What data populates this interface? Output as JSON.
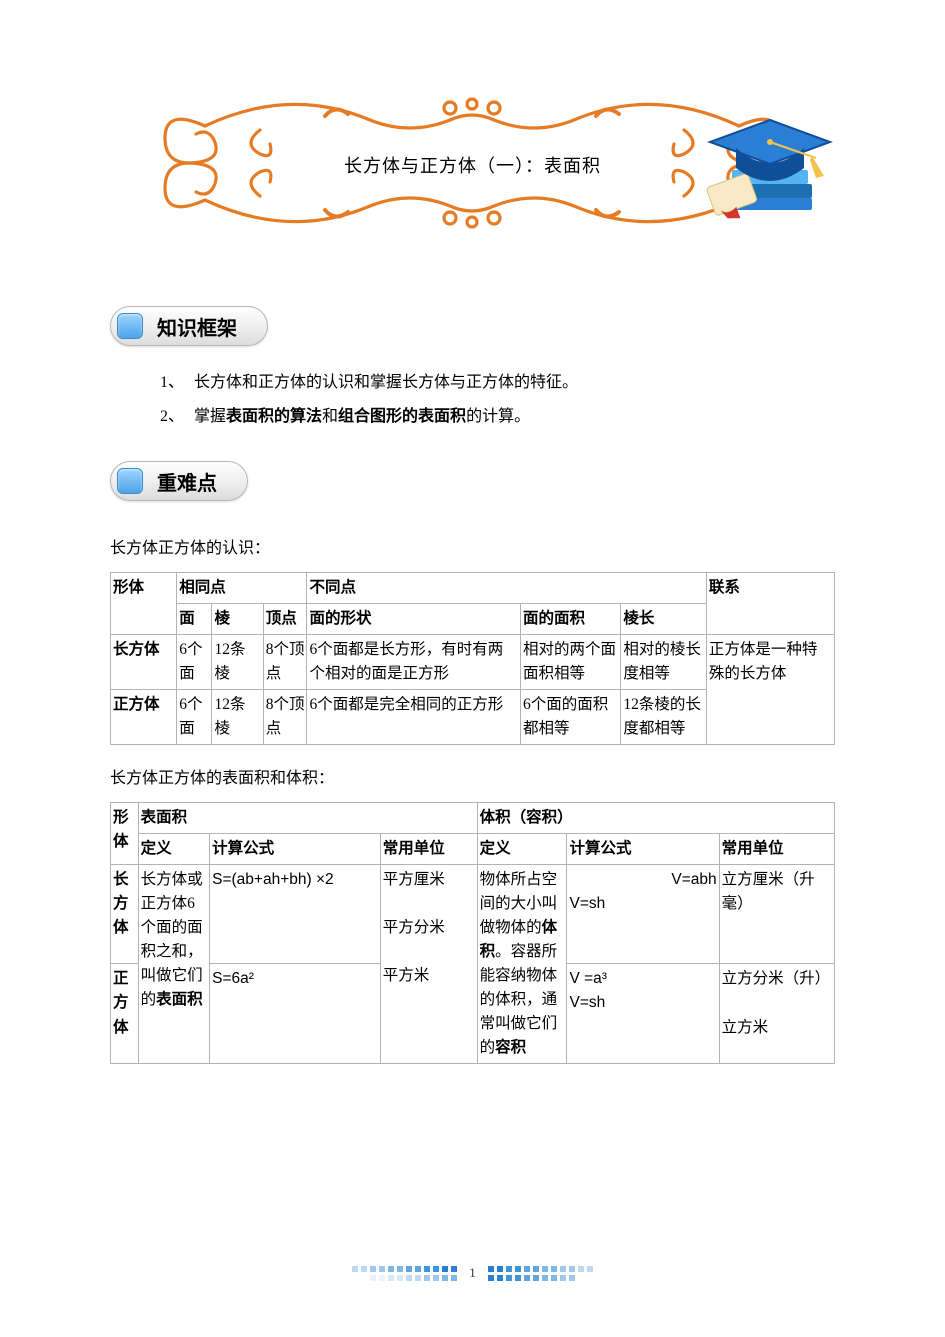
{
  "banner": {
    "title": "长方体与正方体（一）：表面积",
    "swirl_color": "#e67b24",
    "cap_blue": "#2a7fd4",
    "cap_dark": "#0f4f9a",
    "book_blue": "#54b3f2",
    "book_dark": "#1c6fb0",
    "scroll_color": "#f8e9c7",
    "ribbon_color": "#d4362e"
  },
  "section1": {
    "label": "知识框架"
  },
  "list": {
    "items": [
      {
        "num": "1、",
        "text": "长方体和正方体的认识和掌握长方体与正方体的特征。"
      },
      {
        "num": "2、",
        "prefix": "掌握",
        "bold1": "表面积的算法",
        "mid": "和",
        "bold2": "组合图形的表面积",
        "suffix": "的计算。"
      }
    ]
  },
  "section2": {
    "label": "重难点"
  },
  "subtitle1": "长方体正方体的认识：",
  "table1": {
    "headers": {
      "shape": "形体",
      "same": "相同点",
      "diff": "不同点",
      "relation": "联系",
      "face": "面",
      "edge": "棱",
      "vertex": "顶点",
      "face_shape": "面的形状",
      "face_area": "面的面积",
      "edge_len": "棱长"
    },
    "rows": [
      {
        "name": "长方体",
        "face": "6个面",
        "edge": "12条棱",
        "vertex": "8个顶点",
        "face_shape": "6个面都是长方形，有时有两个相对的面是正方形",
        "face_area": "相对的两个面面积相等",
        "edge_len": "相对的棱长度相等"
      },
      {
        "name": "正方体",
        "face": "6个面",
        "edge": "12条棱",
        "vertex": "8个顶点",
        "face_shape": "6个面都是完全相同的正方形",
        "face_area": "6个面的面积都相等",
        "edge_len": "12条棱的长度都相等"
      }
    ],
    "relation_text": "正方体是一种特殊的长方体"
  },
  "subtitle2": "长方体正方体的表面积和体积：",
  "table2": {
    "headers": {
      "shape": "形体",
      "surface": "表面积",
      "volume": "体积（容积）",
      "def": "定义",
      "formula": "计算公式",
      "unit": "常用单位"
    },
    "row_cuboid": "长方体",
    "row_cube": "正方体",
    "surface_def_pre": "长方体或正方体6个面的面积之和，叫做它们的",
    "surface_def_bold": "表面积",
    "formula_cuboid_s": "S=(ab+ah+bh) ×2",
    "formula_cube_s": "S=6a²",
    "surface_units": "平方厘米\n\n平方分米\n\n平方米",
    "volume_def_pre": "物体所占空间的大小叫做物体的",
    "volume_def_bold1": "体积",
    "volume_def_mid": "。容器所能容纳物体的体积，通常叫做它们的",
    "volume_def_bold2": "容积",
    "formula_cuboid_v_top": "V=abh",
    "formula_cuboid_v_bot": "V=sh",
    "formula_cube_v1": "V =a³",
    "formula_cube_v2": "V=sh",
    "volume_unit_cuboid": "立方厘米（升毫）",
    "volume_unit_cube": "立方分米（升）\n\n立方米"
  },
  "footer": {
    "page_num": "1",
    "left_colors_row1": [
      "#bfd9f2",
      "#bfd9f2",
      "#9fc8ec",
      "#9fc8ec",
      "#7fb7e6",
      "#7fb7e6",
      "#5fa6e0",
      "#5fa6e0",
      "#3f95da",
      "#3f95da",
      "#2a7fd4",
      "#2a7fd4"
    ],
    "left_colors_row2": [
      "#eaf3fb",
      "#eaf3fb",
      "#d7e9f7",
      "#d7e9f7",
      "#bfd9f2",
      "#bfd9f2",
      "#9fc8ec",
      "#9fc8ec",
      "#7fb7e6",
      "#7fb7e6"
    ],
    "right_colors_row1": [
      "#2a7fd4",
      "#2a7fd4",
      "#3f95da",
      "#3f95da",
      "#5fa6e0",
      "#5fa6e0",
      "#7fb7e6",
      "#7fb7e6",
      "#9fc8ec",
      "#9fc8ec",
      "#bfd9f2",
      "#bfd9f2"
    ],
    "right_colors_row2": [
      "#2a7fd4",
      "#2a7fd4",
      "#3f95da",
      "#3f95da",
      "#5fa6e0",
      "#5fa6e0",
      "#7fb7e6",
      "#7fb7e6",
      "#9fc8ec",
      "#9fc8ec"
    ]
  }
}
